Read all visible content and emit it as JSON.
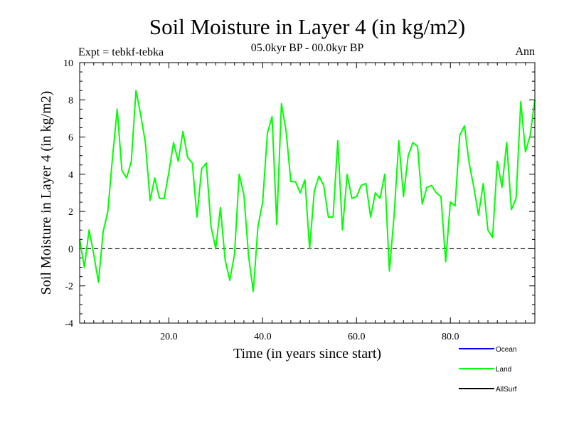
{
  "chart_data": {
    "type": "line",
    "title": "Soil Moisture in Layer 4 (in kg/m2)",
    "subtitle": "05.0kyr BP - 00.0kyr BP",
    "experiment_label": "Expt = tebkf-tebka",
    "season_label": "Ann",
    "xlabel": "Time (in years since start)",
    "ylabel": "Soil Moisture in Layer 4 (in kg/m2)",
    "xlim": [
      1,
      98
    ],
    "ylim": [
      -4,
      10
    ],
    "x_ticks": [
      20,
      40,
      60,
      80
    ],
    "x_tick_labels": [
      "20.0",
      "40.0",
      "60.0",
      "80.0"
    ],
    "y_ticks": [
      -4,
      -2,
      0,
      2,
      4,
      6,
      8,
      10
    ],
    "y_tick_labels": [
      "-4",
      "-2",
      "0",
      "2",
      "4",
      "6",
      "8",
      "10"
    ],
    "reference_line": 0,
    "colors": {
      "Ocean": "#0000ff",
      "Land": "#00ff00",
      "AllSurf": "#000000"
    },
    "legend": [
      "Ocean",
      "Land",
      "AllSurf"
    ],
    "series": [
      {
        "name": "Land",
        "x": [
          1,
          2,
          3,
          4,
          5,
          6,
          7,
          8,
          9,
          10,
          11,
          12,
          13,
          14,
          15,
          16,
          17,
          18,
          19,
          20,
          21,
          22,
          23,
          24,
          25,
          26,
          27,
          28,
          29,
          30,
          31,
          32,
          33,
          34,
          35,
          36,
          37,
          38,
          39,
          40,
          41,
          42,
          43,
          44,
          45,
          46,
          47,
          48,
          49,
          50,
          51,
          52,
          53,
          54,
          55,
          56,
          57,
          58,
          59,
          60,
          61,
          62,
          63,
          64,
          65,
          66,
          67,
          68,
          69,
          70,
          71,
          72,
          73,
          74,
          75,
          76,
          77,
          78,
          79,
          80,
          81,
          82,
          83,
          84,
          85,
          86,
          87,
          88,
          89,
          90,
          91,
          92,
          93,
          94,
          95,
          96,
          97,
          98
        ],
        "values": [
          0.5,
          -1.0,
          1.0,
          -0.3,
          -1.8,
          0.9,
          2.0,
          4.9,
          7.5,
          4.2,
          3.8,
          4.7,
          8.5,
          7.2,
          5.7,
          2.6,
          3.8,
          2.7,
          2.7,
          4.1,
          5.7,
          4.7,
          6.3,
          4.9,
          4.6,
          1.7,
          4.3,
          4.6,
          1.2,
          0.0,
          2.2,
          -0.6,
          -1.7,
          -0.3,
          4.0,
          2.9,
          -0.4,
          -2.3,
          1.2,
          2.5,
          6.2,
          7.1,
          1.3,
          7.8,
          6.3,
          3.6,
          3.6,
          3.0,
          3.7,
          0.0,
          3.1,
          3.9,
          3.4,
          1.7,
          1.7,
          5.8,
          1.0,
          4.0,
          2.7,
          2.8,
          3.4,
          3.5,
          1.7,
          3.0,
          2.7,
          4.0,
          -1.2,
          1.8,
          5.8,
          2.8,
          5.0,
          5.7,
          5.5,
          2.4,
          3.3,
          3.4,
          3.0,
          2.8,
          -0.7,
          2.5,
          2.3,
          6.1,
          6.6,
          4.6,
          3.3,
          1.8,
          3.5,
          1.0,
          0.6,
          4.7,
          3.3,
          5.7,
          2.1,
          2.7,
          7.9,
          5.2,
          6.1,
          8.0
        ]
      }
    ]
  }
}
